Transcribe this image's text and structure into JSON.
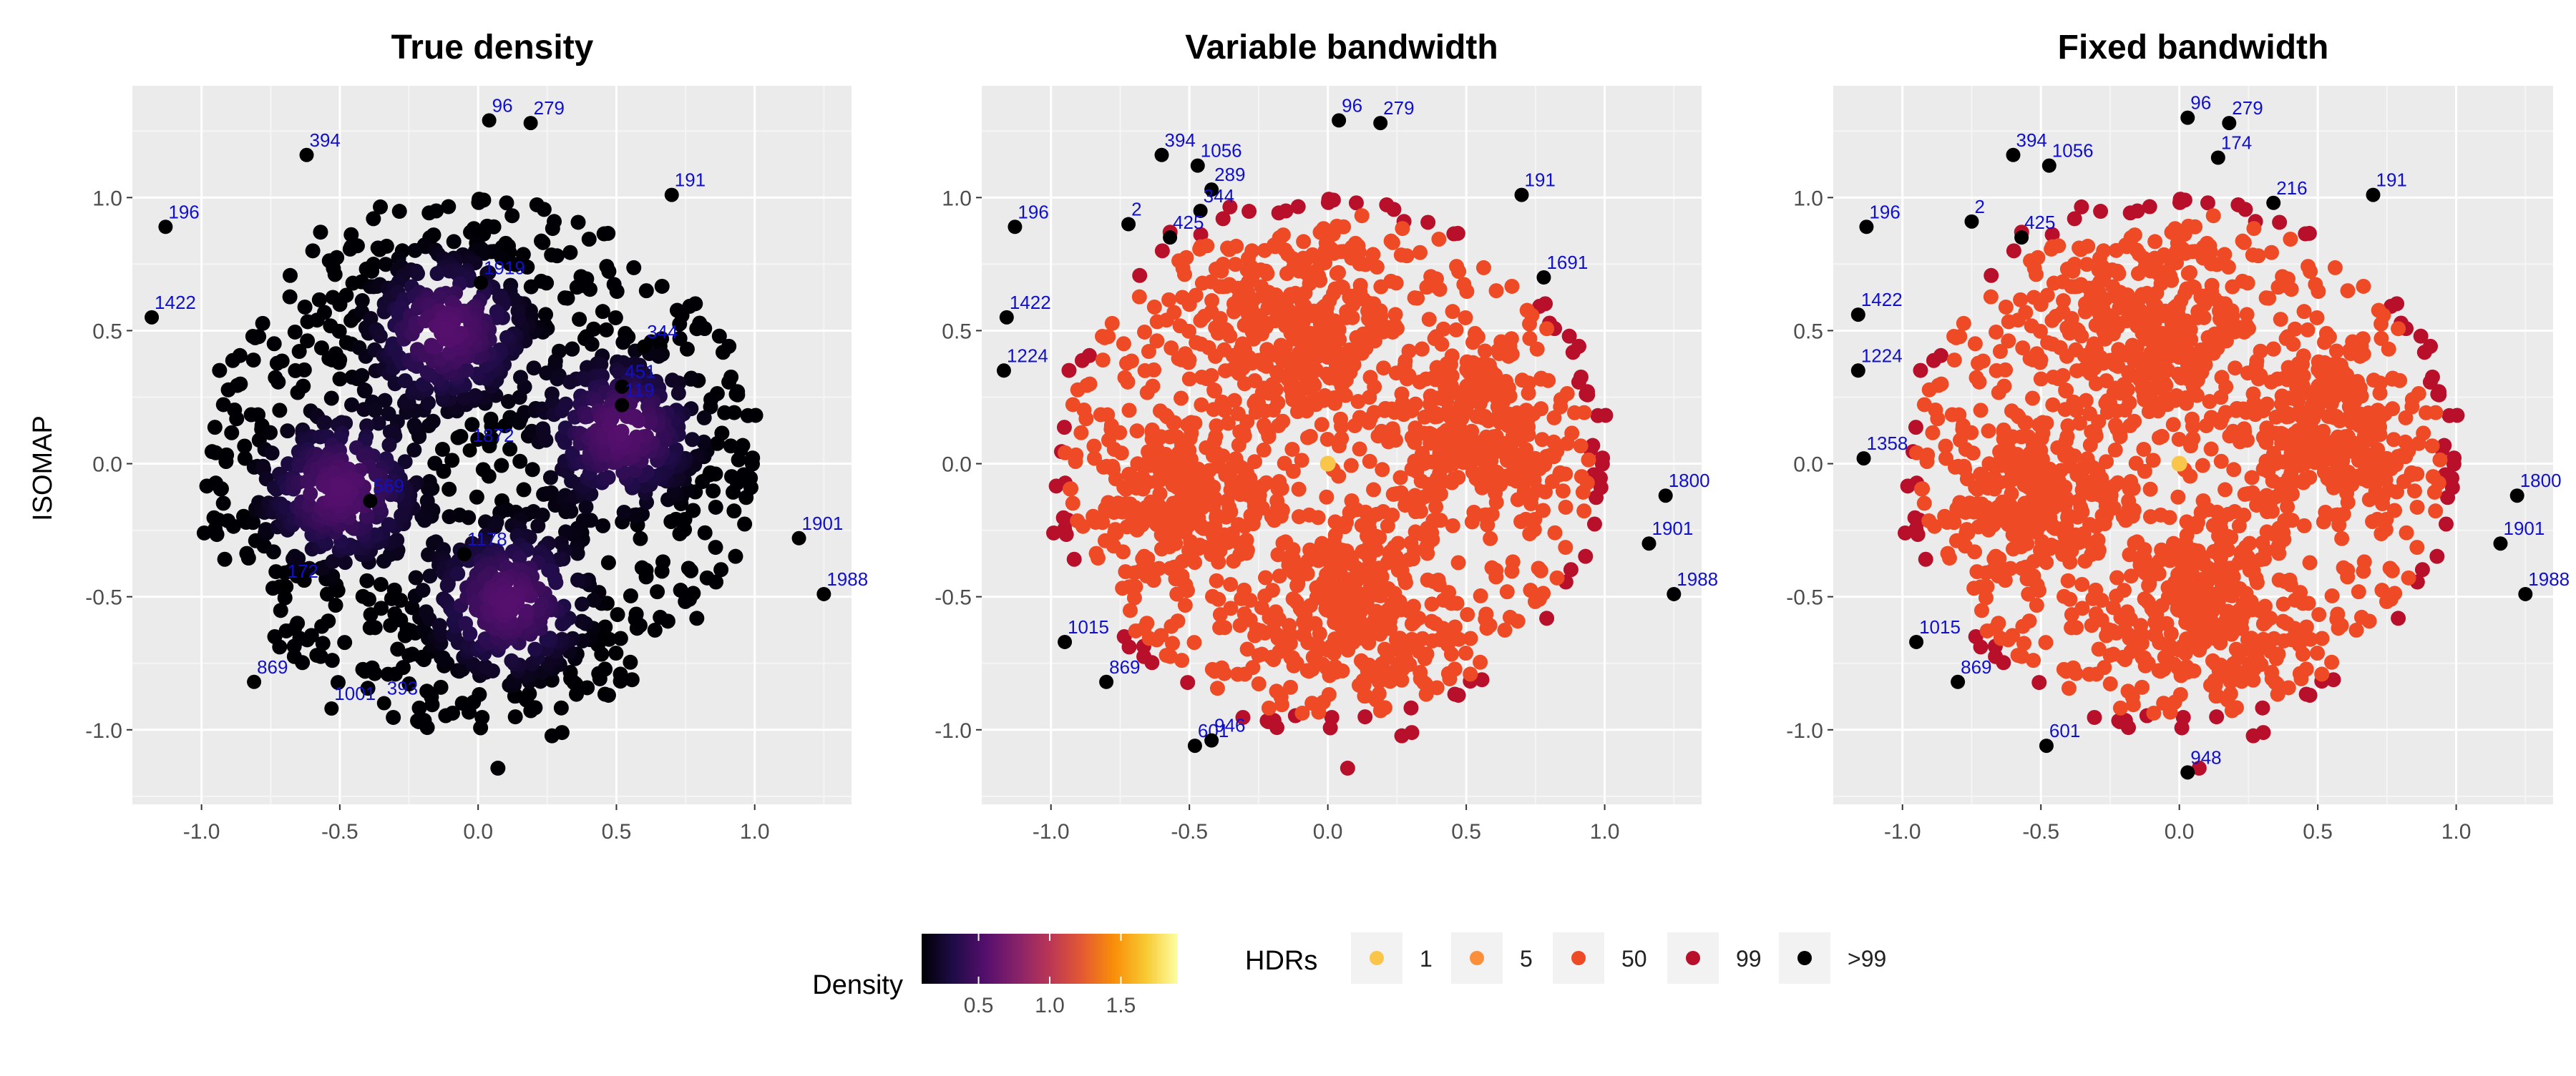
{
  "chart_data": [
    {
      "type": "scatter",
      "title": "True density",
      "ylabel": "ISOMAP",
      "xlim": [
        -1.25,
        1.35
      ],
      "ylim": [
        -1.28,
        1.42
      ],
      "xticks": [
        "-1.0",
        "-0.5",
        "0.0",
        "0.5",
        "1.0"
      ],
      "xtick_values": [
        -1.0,
        -0.5,
        0.0,
        0.5,
        1.0
      ],
      "yticks": [
        "-1.0",
        "-0.5",
        "0.0",
        "0.5",
        "1.0"
      ],
      "ytick_values": [
        -1.0,
        -0.5,
        0.0,
        0.5,
        1.0
      ],
      "grid": true,
      "color_encoding": "density",
      "labeled_points": [
        {
          "label": "394",
          "x": -0.62,
          "y": 1.16
        },
        {
          "label": "96",
          "x": 0.04,
          "y": 1.29
        },
        {
          "label": "279",
          "x": 0.19,
          "y": 1.28
        },
        {
          "label": "191",
          "x": 0.7,
          "y": 1.01
        },
        {
          "label": "196",
          "x": -1.13,
          "y": 0.89
        },
        {
          "label": "1422",
          "x": -1.18,
          "y": 0.55
        },
        {
          "label": "1919",
          "x": 0.01,
          "y": 0.68
        },
        {
          "label": "344",
          "x": 0.6,
          "y": 0.44
        },
        {
          "label": "451",
          "x": 0.52,
          "y": 0.29
        },
        {
          "label": "119",
          "x": 0.52,
          "y": 0.22
        },
        {
          "label": "1872",
          "x": -0.03,
          "y": 0.05
        },
        {
          "label": "569",
          "x": -0.39,
          "y": -0.14
        },
        {
          "label": "1178",
          "x": -0.05,
          "y": -0.34
        },
        {
          "label": "1901",
          "x": 1.16,
          "y": -0.28
        },
        {
          "label": "1988",
          "x": 1.25,
          "y": -0.49
        },
        {
          "label": "172",
          "x": -0.7,
          "y": -0.46
        },
        {
          "label": "869",
          "x": -0.81,
          "y": -0.82
        },
        {
          "label": "1001",
          "x": -0.53,
          "y": -0.92
        },
        {
          "label": "393",
          "x": -0.34,
          "y": -0.9
        }
      ]
    },
    {
      "type": "scatter",
      "title": "Variable bandwidth",
      "xlim": [
        -1.25,
        1.35
      ],
      "ylim": [
        -1.28,
        1.42
      ],
      "xticks": [
        "-1.0",
        "-0.5",
        "0.0",
        "0.5",
        "1.0"
      ],
      "xtick_values": [
        -1.0,
        -0.5,
        0.0,
        0.5,
        1.0
      ],
      "yticks": [
        "-1.0",
        "-0.5",
        "0.0",
        "0.5",
        "1.0"
      ],
      "ytick_values": [
        -1.0,
        -0.5,
        0.0,
        0.5,
        1.0
      ],
      "grid": true,
      "color_encoding": "HDRs",
      "labeled_points": [
        {
          "label": "394",
          "x": -0.6,
          "y": 1.16
        },
        {
          "label": "96",
          "x": 0.04,
          "y": 1.29
        },
        {
          "label": "279",
          "x": 0.19,
          "y": 1.28
        },
        {
          "label": "1056",
          "x": -0.47,
          "y": 1.12
        },
        {
          "label": "289",
          "x": -0.42,
          "y": 1.03
        },
        {
          "label": "344",
          "x": -0.46,
          "y": 0.95
        },
        {
          "label": "2",
          "x": -0.72,
          "y": 0.9
        },
        {
          "label": "425",
          "x": -0.57,
          "y": 0.85
        },
        {
          "label": "196",
          "x": -1.13,
          "y": 0.89
        },
        {
          "label": "191",
          "x": 0.7,
          "y": 1.01
        },
        {
          "label": "1691",
          "x": 0.78,
          "y": 0.7
        },
        {
          "label": "1422",
          "x": -1.16,
          "y": 0.55
        },
        {
          "label": "1224",
          "x": -1.17,
          "y": 0.35
        },
        {
          "label": "1800",
          "x": 1.22,
          "y": -0.12
        },
        {
          "label": "1901",
          "x": 1.16,
          "y": -0.3
        },
        {
          "label": "1988",
          "x": 1.25,
          "y": -0.49
        },
        {
          "label": "1015",
          "x": -0.95,
          "y": -0.67
        },
        {
          "label": "869",
          "x": -0.8,
          "y": -0.82
        },
        {
          "label": "601",
          "x": -0.48,
          "y": -1.06
        },
        {
          "label": "946",
          "x": -0.42,
          "y": -1.04
        }
      ]
    },
    {
      "type": "scatter",
      "title": "Fixed bandwidth",
      "xlim": [
        -1.25,
        1.35
      ],
      "ylim": [
        -1.28,
        1.42
      ],
      "xticks": [
        "-1.0",
        "-0.5",
        "0.0",
        "0.5",
        "1.0"
      ],
      "xtick_values": [
        -1.0,
        -0.5,
        0.0,
        0.5,
        1.0
      ],
      "yticks": [
        "-1.0",
        "-0.5",
        "0.0",
        "0.5",
        "1.0"
      ],
      "ytick_values": [
        -1.0,
        -0.5,
        0.0,
        0.5,
        1.0
      ],
      "grid": true,
      "color_encoding": "HDRs",
      "labeled_points": [
        {
          "label": "96",
          "x": 0.03,
          "y": 1.3
        },
        {
          "label": "279",
          "x": 0.18,
          "y": 1.28
        },
        {
          "label": "394",
          "x": -0.6,
          "y": 1.16
        },
        {
          "label": "1056",
          "x": -0.47,
          "y": 1.12
        },
        {
          "label": "174",
          "x": 0.14,
          "y": 1.15
        },
        {
          "label": "191",
          "x": 0.7,
          "y": 1.01
        },
        {
          "label": "216",
          "x": 0.34,
          "y": 0.98
        },
        {
          "label": "196",
          "x": -1.13,
          "y": 0.89
        },
        {
          "label": "2",
          "x": -0.75,
          "y": 0.91
        },
        {
          "label": "425",
          "x": -0.57,
          "y": 0.85
        },
        {
          "label": "1422",
          "x": -1.16,
          "y": 0.56
        },
        {
          "label": "1224",
          "x": -1.16,
          "y": 0.35
        },
        {
          "label": "1358",
          "x": -1.14,
          "y": 0.02
        },
        {
          "label": "1800",
          "x": 1.22,
          "y": -0.12
        },
        {
          "label": "1901",
          "x": 1.16,
          "y": -0.3
        },
        {
          "label": "1988",
          "x": 1.25,
          "y": -0.49
        },
        {
          "label": "1015",
          "x": -0.95,
          "y": -0.67
        },
        {
          "label": "869",
          "x": -0.8,
          "y": -0.82
        },
        {
          "label": "601",
          "x": -0.48,
          "y": -1.06
        },
        {
          "label": "948",
          "x": 0.03,
          "y": -1.16
        }
      ]
    }
  ],
  "legend": {
    "density": {
      "title": "Density",
      "ticks": [
        "0.5",
        "1.0",
        "1.5"
      ],
      "tick_values": [
        0.5,
        1.0,
        1.5
      ],
      "range": [
        0.1,
        1.9
      ],
      "colors": [
        "#000004",
        "#1f0c48",
        "#550f6d",
        "#88226a",
        "#ba3655",
        "#e35933",
        "#f98e09",
        "#f8c932",
        "#fcffa4"
      ]
    },
    "hdr": {
      "title": "HDRs",
      "items": [
        {
          "label": "1",
          "color": "#f9c649"
        },
        {
          "label": "5",
          "color": "#fb8f3a"
        },
        {
          "label": "50",
          "color": "#ee4a25"
        },
        {
          "label": "99",
          "color": "#b8102a"
        },
        {
          "label": ">99",
          "color": "#000000"
        }
      ]
    }
  },
  "style": {
    "panel_bg": "#ebebeb",
    "grid_major": "#ffffff",
    "label_color": "#1010cc",
    "tick_text_color": "#4d4d4d"
  }
}
